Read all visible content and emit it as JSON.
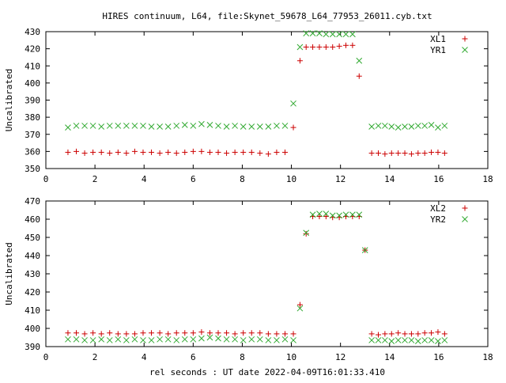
{
  "title": "HIRES continuum, L64, file:Skynet_59678_L64_77953_26011.cyb.txt",
  "xlabel": "rel seconds : UT date 2022-04-09T16:01:33.410",
  "colors": {
    "red": "#cc0000",
    "green": "#33aa33",
    "axis": "#000000"
  },
  "chart_data": [
    {
      "type": "scatter",
      "ylabel": "Uncalibrated",
      "xlim": [
        0,
        18
      ],
      "ylim": [
        350,
        430
      ],
      "xticks": [
        "0",
        "2",
        "4",
        "6",
        "8",
        "10",
        "12",
        "14",
        "16",
        "18"
      ],
      "yticks": [
        "350",
        "360",
        "370",
        "380",
        "390",
        "400",
        "410",
        "420",
        "430"
      ],
      "legend_position": "top-right",
      "grid": false,
      "x": [
        0.9,
        1.24,
        1.58,
        1.92,
        2.26,
        2.6,
        2.94,
        3.28,
        3.62,
        3.96,
        4.3,
        4.64,
        4.98,
        5.32,
        5.66,
        6.0,
        6.34,
        6.68,
        7.02,
        7.36,
        7.7,
        8.04,
        8.38,
        8.72,
        9.06,
        9.4,
        9.74,
        10.08,
        10.35,
        10.6,
        10.87,
        11.14,
        11.41,
        11.68,
        11.95,
        12.22,
        12.49,
        12.76,
        13.0,
        13.27,
        13.54,
        13.81,
        14.08,
        14.35,
        14.62,
        14.89,
        15.16,
        15.43,
        15.7,
        15.97,
        16.24
      ],
      "series": [
        {
          "name": "XL1",
          "marker": "plus",
          "color": "#cc0000",
          "values": [
            359.5,
            360,
            359,
            359.5,
            359.5,
            359,
            359.5,
            359,
            360,
            359.5,
            359.5,
            359,
            359.5,
            359,
            359.5,
            360,
            360,
            359.5,
            359.5,
            359,
            359.5,
            359.5,
            359.5,
            359,
            358.5,
            359.5,
            359.5,
            374,
            413,
            421,
            421,
            421,
            421,
            421,
            421.5,
            422,
            422,
            404,
            null,
            359,
            359,
            358.5,
            359,
            359,
            359,
            358.5,
            359,
            359,
            359.5,
            359.5,
            359
          ]
        },
        {
          "name": "YR1",
          "marker": "cross",
          "color": "#33aa33",
          "values": [
            374,
            375,
            375,
            375,
            374.5,
            375,
            375,
            375,
            375,
            375,
            374.5,
            374.5,
            374.5,
            375,
            375.5,
            375,
            376,
            375.5,
            375,
            374.5,
            375,
            374.5,
            374.5,
            374.5,
            374.5,
            375,
            375,
            388,
            421,
            429,
            429,
            429,
            428.5,
            428.5,
            428.5,
            428.5,
            428.5,
            413,
            null,
            374.5,
            375,
            375,
            374.5,
            374,
            374.5,
            374.5,
            375,
            375,
            375.5,
            374,
            375
          ]
        }
      ]
    },
    {
      "type": "scatter",
      "ylabel": "Uncalibrated",
      "xlim": [
        0,
        18
      ],
      "ylim": [
        390,
        470
      ],
      "xticks": [
        "0",
        "2",
        "4",
        "6",
        "8",
        "10",
        "12",
        "14",
        "16",
        "18"
      ],
      "yticks": [
        "390",
        "400",
        "410",
        "420",
        "430",
        "440",
        "450",
        "460",
        "470"
      ],
      "legend_position": "top-right",
      "grid": false,
      "x": [
        0.9,
        1.24,
        1.58,
        1.92,
        2.26,
        2.6,
        2.94,
        3.28,
        3.62,
        3.96,
        4.3,
        4.64,
        4.98,
        5.32,
        5.66,
        6.0,
        6.34,
        6.68,
        7.02,
        7.36,
        7.7,
        8.04,
        8.38,
        8.72,
        9.06,
        9.4,
        9.74,
        10.08,
        10.35,
        10.6,
        10.87,
        11.14,
        11.41,
        11.68,
        11.95,
        12.22,
        12.49,
        12.76,
        13.0,
        13.27,
        13.54,
        13.81,
        14.08,
        14.35,
        14.62,
        14.89,
        15.16,
        15.43,
        15.7,
        15.97,
        16.24
      ],
      "series": [
        {
          "name": "XL2",
          "marker": "plus",
          "color": "#cc0000",
          "values": [
            397.5,
            397.5,
            397,
            397.5,
            397,
            397.5,
            397,
            397,
            397,
            397.5,
            397.5,
            397.5,
            397,
            397.5,
            397.5,
            397.5,
            398,
            397.5,
            397.5,
            397.5,
            397,
            397.5,
            397.5,
            397.5,
            397,
            397,
            397,
            397,
            413,
            452,
            461.5,
            461.5,
            461.5,
            461,
            461,
            461.5,
            461.5,
            461.5,
            443,
            397,
            396.5,
            397,
            397,
            397.5,
            397,
            397,
            397,
            397.5,
            397.5,
            398,
            397
          ]
        },
        {
          "name": "YR2",
          "marker": "cross",
          "color": "#33aa33",
          "values": [
            394,
            394,
            393.5,
            393.5,
            394,
            393.5,
            394,
            393.5,
            394,
            393.5,
            393.5,
            394,
            394,
            393.5,
            394,
            394,
            394.5,
            395,
            394.5,
            394,
            394,
            393.5,
            394,
            394,
            393.5,
            393.5,
            394,
            393.5,
            411,
            452.5,
            462.5,
            463,
            463,
            462,
            462,
            462.5,
            462.5,
            462.5,
            443,
            393.5,
            393.5,
            393.5,
            393,
            393.5,
            393.5,
            393.5,
            393,
            393.5,
            393.5,
            393,
            393.5
          ]
        }
      ]
    }
  ]
}
